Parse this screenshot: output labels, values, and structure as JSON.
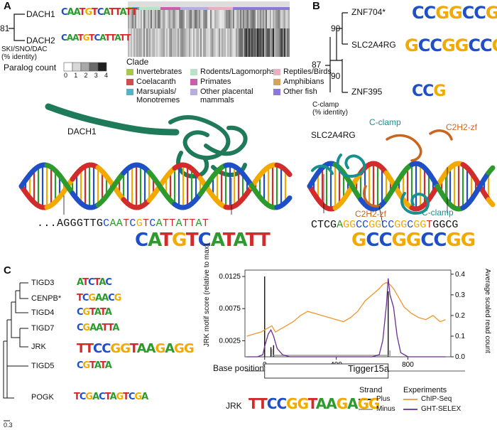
{
  "panelA": {
    "letter": "A",
    "tree_node_value": "81",
    "genes": [
      "DACH1",
      "DACH2"
    ],
    "identity_label_line1": "SKI/SNO/DAC",
    "identity_label_line2": "(% identity)",
    "paralog_label": "Paralog count",
    "paralog_ticks": [
      "0",
      "1",
      "2",
      "3",
      "4"
    ],
    "clade_title": "Clade",
    "clades": [
      {
        "name": "Invertebrates",
        "color": "#a6c84d"
      },
      {
        "name": "Coelacanth",
        "color": "#d14d4d"
      },
      {
        "name": "Marsupials/",
        "name2": "Monotremes",
        "color": "#5ab0c8"
      },
      {
        "name": "Rodents/Lagomorphs",
        "color": "#b9e3c6"
      },
      {
        "name": "Primates",
        "color": "#c95fa9"
      },
      {
        "name": "Other placental",
        "name2": "mammals",
        "color": "#b6aee0"
      },
      {
        "name": "Reptiles/Birds",
        "color": "#eab0c2"
      },
      {
        "name": "Amphibians",
        "color": "#d4a45a"
      },
      {
        "name": "Other fish",
        "color": "#8a7ad6"
      }
    ],
    "protein_label": "DACH1",
    "dna_sequence": "...AGGGTTGCAATCGTCATTATTAT",
    "motif_logo": "CAATGTCATTATT",
    "small_logo": "CATGTCATATT"
  },
  "panelB": {
    "letter": "B",
    "genes": [
      "ZNF704*",
      "SLC2A4RG",
      "ZNF395"
    ],
    "node_values": [
      "87",
      "90",
      "90"
    ],
    "identity_label_line1": "C-clamp",
    "identity_label_line2": "(% identity)",
    "logos": [
      "CCGGCCGG",
      "GCCGGCCGG",
      "CCG"
    ],
    "structure_labels": {
      "protein": "SLC2A4RG",
      "cclamp_top": "C-clamp",
      "c2h2_top": "C2H2-zf",
      "c2h2_bottom": "C2H2-zf",
      "cclamp_bottom": "C-clamp"
    },
    "dna_sequence": "CTCGAGGCCGGCCGGCGGTGGCG",
    "motif_logo": "GCCGGCCGG"
  },
  "panelC": {
    "letter": "C",
    "genes": [
      "TIGD3",
      "CENPB*",
      "TIGD4",
      "TIGD7",
      "JRK",
      "TIGD5",
      "POGK"
    ],
    "logos": [
      "ATCTAC",
      "TCGAACG",
      "CGTATA",
      "CGAATTA",
      "TTCCGGTAAGAGG",
      "CGTATA",
      "TCGACTAGTCGA"
    ],
    "scale_bar": "0.3",
    "chart_data": {
      "type": "line",
      "xlabel": "Base position",
      "ylabel_left": "JRK motif score (relative to max)",
      "ylabel_right": "Average scaled read count",
      "x_ticks": [
        "0",
        "400",
        "800"
      ],
      "y_left_ticks": [
        "0.0025",
        "0.0075",
        "0.0125"
      ],
      "y_right_ticks": [
        "0.0",
        "0.1",
        "0.2",
        "0.3",
        "0.4"
      ],
      "xlim": [
        -110,
        1040
      ],
      "ylim_left": [
        0,
        0.0135
      ],
      "ylim_right": [
        0,
        0.42
      ],
      "element_label": "Tigger15a",
      "series": [
        {
          "name": "ChIP-Seq",
          "color": "#f0962e",
          "axis": "right",
          "x": [
            -100,
            -60,
            -20,
            0,
            20,
            40,
            60,
            80,
            120,
            160,
            200,
            240,
            280,
            320,
            360,
            400,
            440,
            480,
            520,
            560,
            600,
            640,
            660,
            680,
            700,
            720,
            740,
            780,
            820,
            860,
            900,
            940,
            980,
            1010
          ],
          "y": [
            0.1,
            0.11,
            0.12,
            0.13,
            0.14,
            0.15,
            0.12,
            0.13,
            0.15,
            0.17,
            0.2,
            0.22,
            0.21,
            0.2,
            0.19,
            0.18,
            0.17,
            0.19,
            0.22,
            0.27,
            0.3,
            0.33,
            0.35,
            0.36,
            0.35,
            0.33,
            0.3,
            0.24,
            0.21,
            0.19,
            0.18,
            0.2,
            0.17,
            0.18
          ]
        },
        {
          "name": "GHT-SELEX",
          "color": "#6a2c91",
          "axis": "right",
          "x": [
            -100,
            -40,
            -10,
            0,
            20,
            35,
            50,
            70,
            100,
            140,
            600,
            640,
            660,
            680,
            690,
            700,
            720,
            740,
            760,
            800,
            1010
          ],
          "y": [
            0,
            0,
            0.01,
            0.05,
            0.11,
            0.13,
            0.1,
            0.04,
            0.01,
            0,
            0,
            0.01,
            0.08,
            0.25,
            0.38,
            0.3,
            0.24,
            0.1,
            0.02,
            0,
            0
          ]
        }
      ],
      "motif_hits": [
        {
          "strand": "Plus",
          "x": 0,
          "score": 0.0125
        },
        {
          "strand": "Plus",
          "x": 35,
          "score": 0.0015
        },
        {
          "strand": "Plus",
          "x": 50,
          "score": 0.0018
        },
        {
          "strand": "Plus",
          "x": 690,
          "score": 0.0102
        },
        {
          "strand": "Minus",
          "x": 40,
          "score": 0.0012
        },
        {
          "strand": "Minus",
          "x": 700,
          "score": 0.001
        }
      ],
      "strand_colors": {
        "Plus": "#111111",
        "Minus": "#9a9a9a"
      }
    },
    "legend": {
      "logo_label": "JRK",
      "logo": "TTCCGGTAAGAGG",
      "strand_title": "Strand",
      "strand_items": [
        "Plus",
        "Minus"
      ],
      "exp_title": "Experiments",
      "exp_items": [
        "ChIP-Seq",
        "GHT-SELEX"
      ]
    }
  },
  "colors": {
    "A": "#2c9a2c",
    "C": "#1f4fc7",
    "G": "#f2a900",
    "T": "#d22b2b",
    "protein_green": "#1f7a5a",
    "protein_teal": "#1a8f8f",
    "protein_orange": "#c9651e"
  }
}
